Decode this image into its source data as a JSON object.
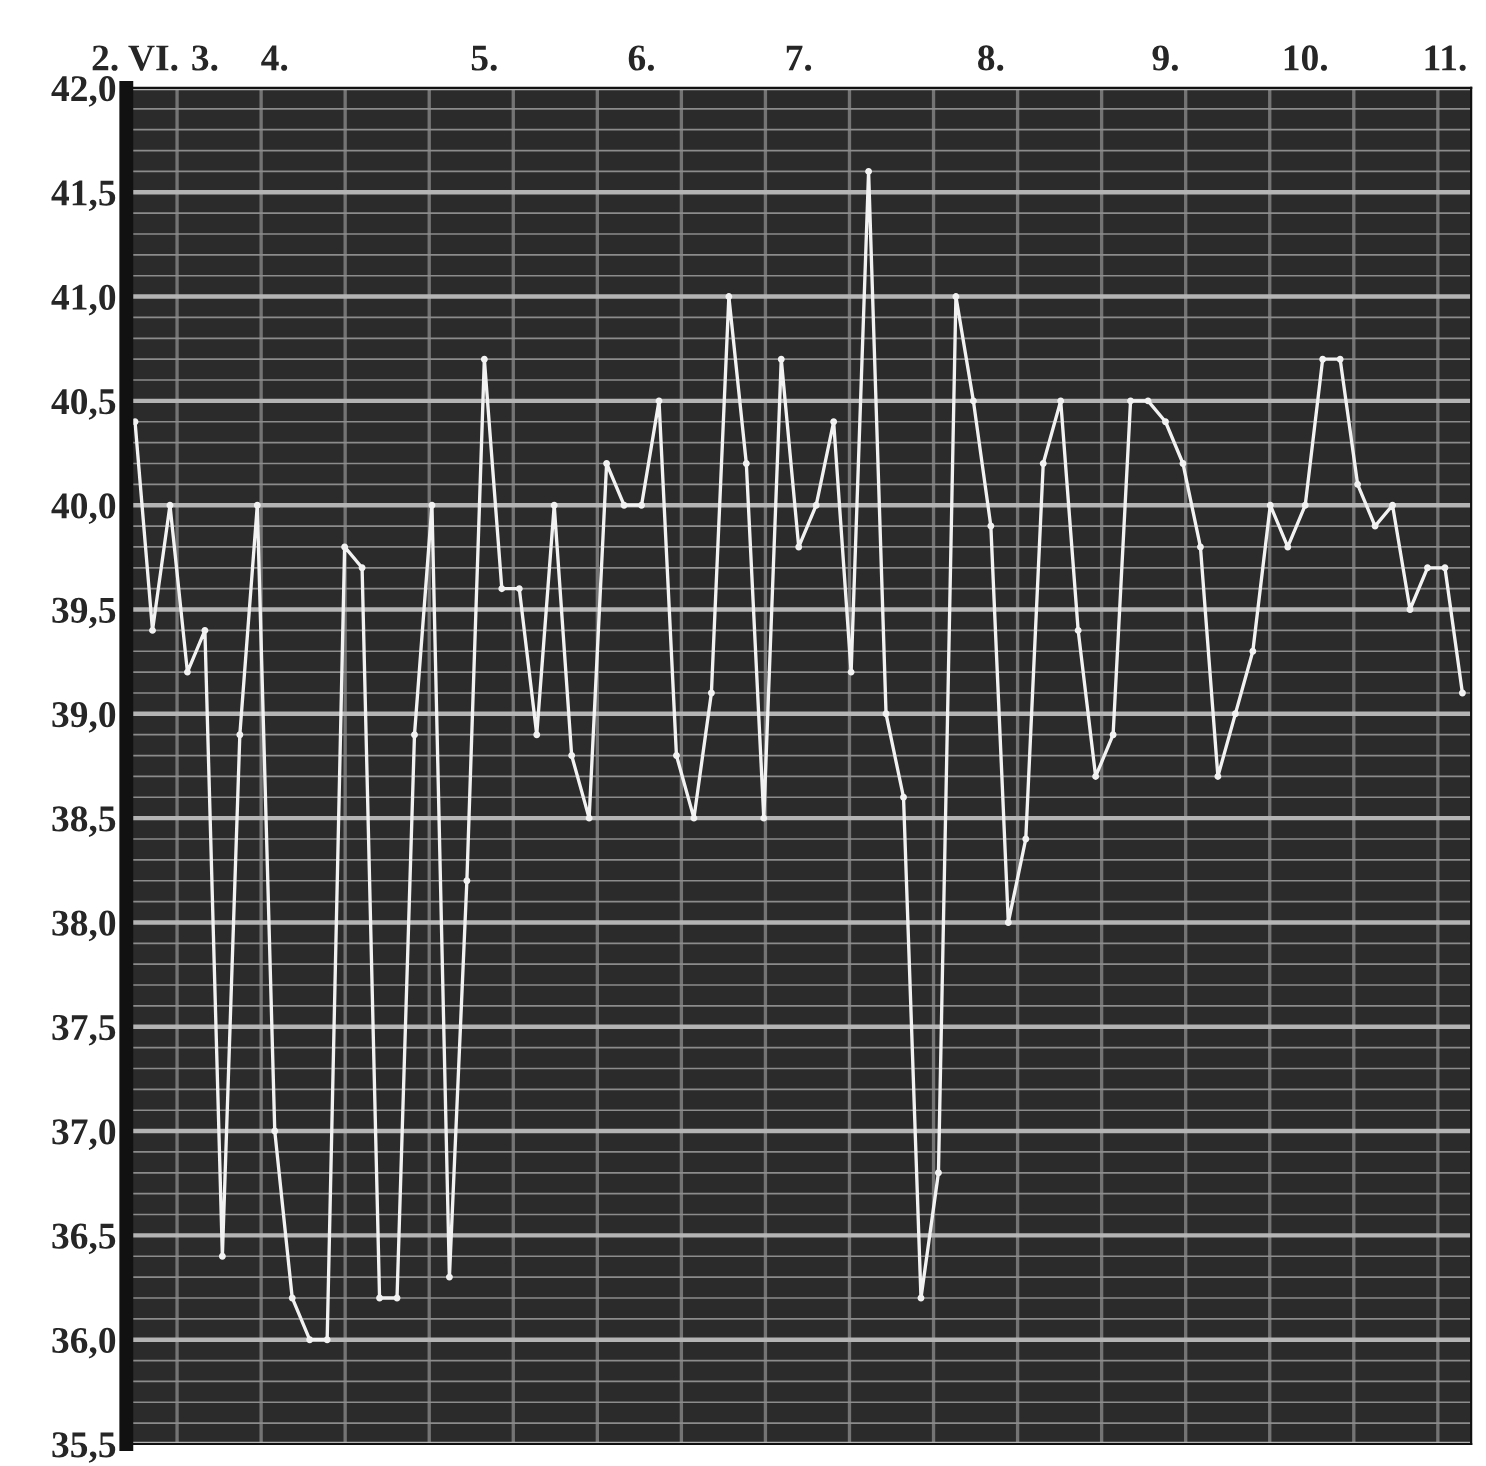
{
  "chart_data": {
    "type": "line",
    "ylim": [
      35.5,
      42.0
    ],
    "categories": [
      "2. VI.",
      null,
      null,
      null,
      "3.",
      null,
      null,
      null,
      "4.",
      null,
      null,
      null,
      null,
      null,
      null,
      null,
      null,
      null,
      null,
      null,
      "5.",
      null,
      null,
      null,
      null,
      null,
      null,
      null,
      null,
      "6.",
      null,
      null,
      null,
      null,
      null,
      null,
      null,
      null,
      "7.",
      null,
      null,
      null,
      null,
      null,
      null,
      null,
      null,
      null,
      null,
      "8.",
      null,
      null,
      null,
      null,
      null,
      null,
      null,
      null,
      null,
      "9.",
      null,
      null,
      null,
      null,
      null,
      null,
      null,
      "10.",
      null,
      null,
      null,
      null,
      null,
      null,
      null,
      "11.",
      null
    ],
    "yticks": [
      {
        "value": 35.5,
        "label": "35,5"
      },
      {
        "value": 36.0,
        "label": "36,0"
      },
      {
        "value": 36.5,
        "label": "36,5"
      },
      {
        "value": 37.0,
        "label": "37,0"
      },
      {
        "value": 37.5,
        "label": "37,5"
      },
      {
        "value": 38.0,
        "label": "38,0"
      },
      {
        "value": 38.5,
        "label": "38,5"
      },
      {
        "value": 39.0,
        "label": "39,0"
      },
      {
        "value": 39.5,
        "label": "39,5"
      },
      {
        "value": 40.0,
        "label": "40,0"
      },
      {
        "value": 40.5,
        "label": "40,5"
      },
      {
        "value": 41.0,
        "label": "41,0"
      },
      {
        "value": 41.5,
        "label": "41,5"
      },
      {
        "value": 42.0,
        "label": "42,0"
      }
    ],
    "grid": true,
    "marker": "circle",
    "line_style": "solid",
    "series": [
      {
        "color": "#f2f2f2",
        "values": [
          40.4,
          39.4,
          40.0,
          39.2,
          39.4,
          36.4,
          38.9,
          40.0,
          37.0,
          36.2,
          36.0,
          36.0,
          39.8,
          39.7,
          36.2,
          36.2,
          38.9,
          40.0,
          36.3,
          38.2,
          40.7,
          39.6,
          39.6,
          38.9,
          40.0,
          38.8,
          38.5,
          40.2,
          40.0,
          40.0,
          40.5,
          38.8,
          38.5,
          39.1,
          41.0,
          40.2,
          38.5,
          40.7,
          39.8,
          40.0,
          40.4,
          39.2,
          41.6,
          39.0,
          38.6,
          36.2,
          36.8,
          41.0,
          40.5,
          39.9,
          38.0,
          38.4,
          40.2,
          40.5,
          39.4,
          38.7,
          38.9,
          40.5,
          40.5,
          40.4,
          40.2,
          39.8,
          38.7,
          39.0,
          39.3,
          40.0,
          39.8,
          40.0,
          40.7,
          40.7,
          40.1,
          39.9,
          40.0,
          39.5,
          39.7,
          39.7,
          39.1
        ]
      }
    ]
  }
}
